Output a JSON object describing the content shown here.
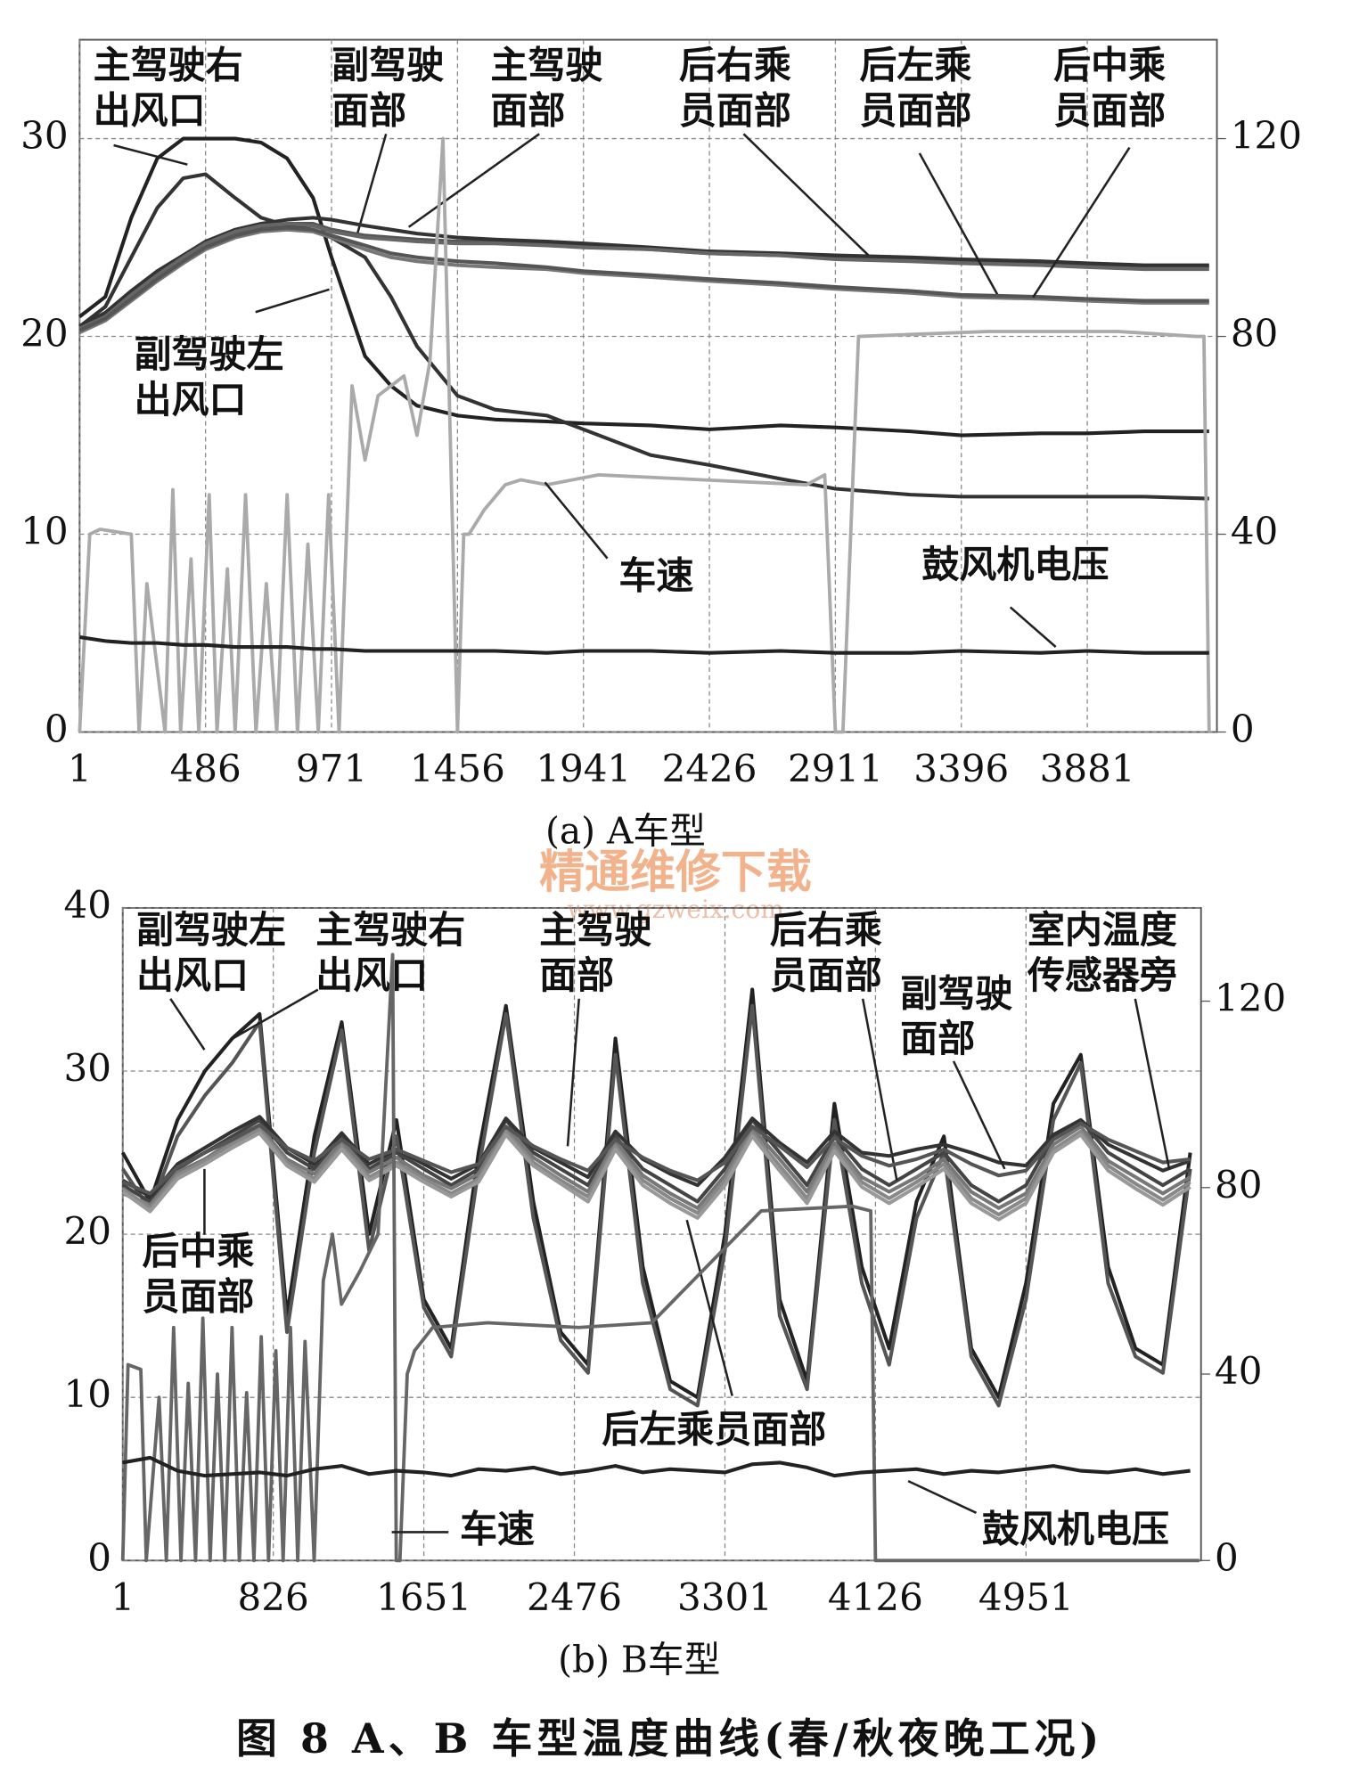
{
  "chart_data": [
    {
      "type": "line",
      "title": "(a) A车型",
      "x": [
        1,
        100,
        200,
        300,
        400,
        486,
        600,
        700,
        800,
        900,
        971,
        1100,
        1200,
        1300,
        1456,
        1600,
        1800,
        1941,
        2200,
        2426,
        2700,
        2911,
        3200,
        3396,
        3700,
        3881,
        4100,
        4350
      ],
      "xlim": [
        1,
        4380
      ],
      "xticks": [
        1,
        486,
        971,
        1456,
        1941,
        2426,
        2911,
        3396,
        3881
      ],
      "ylim": [
        0,
        35
      ],
      "yticks": [
        0,
        10,
        20,
        30
      ],
      "y2lim": [
        0,
        140
      ],
      "y2ticks": [
        0,
        40,
        80,
        120
      ],
      "grid": true,
      "series": [
        {
          "name": "主驾驶右出风口",
          "color": "#222",
          "values": [
            21,
            22,
            26,
            29,
            30,
            30,
            30,
            29.8,
            29,
            27,
            24,
            19,
            17.5,
            16.5,
            16,
            15.8,
            15.7,
            15.6,
            15.5,
            15.3,
            15.5,
            15.4,
            15.2,
            15.0,
            15.1,
            15.1,
            15.2,
            15.2
          ]
        },
        {
          "name": "副驾驶左出风口",
          "color": "#333",
          "values": [
            20.5,
            21.5,
            24,
            26.5,
            28,
            28.2,
            27,
            26,
            25.6,
            25.4,
            25,
            24,
            22,
            19.5,
            17,
            16.3,
            16,
            15.3,
            14,
            13.5,
            12.8,
            12.3,
            12.0,
            11.9,
            11.9,
            11.9,
            11.9,
            11.8
          ]
        },
        {
          "name": "副驾驶面部",
          "color": "#555",
          "values": [
            20.3,
            21,
            22,
            23,
            23.9,
            24.6,
            25.2,
            25.5,
            25.7,
            25.7,
            25.4,
            25.1,
            25,
            24.9,
            24.8,
            24.8,
            24.7,
            24.6,
            24.4,
            24.2,
            24.1,
            24,
            23.9,
            23.8,
            23.7,
            23.6,
            23.5,
            23.5
          ]
        },
        {
          "name": "主驾驶面部",
          "color": "#333",
          "values": [
            20.5,
            21.2,
            22.3,
            23.3,
            24.1,
            24.8,
            25.4,
            25.7,
            25.9,
            26,
            25.9,
            25.6,
            25.4,
            25.2,
            25,
            24.9,
            24.8,
            24.7,
            24.5,
            24.3,
            24.2,
            24.1,
            24,
            23.9,
            23.8,
            23.7,
            23.6,
            23.6
          ]
        },
        {
          "name": "后右乘员面部",
          "color": "#666",
          "values": [
            20.4,
            21,
            22.1,
            23.1,
            24,
            24.7,
            25.3,
            25.6,
            25.7,
            25.6,
            25.3,
            25,
            24.9,
            24.8,
            24.7,
            24.7,
            24.6,
            24.5,
            24.4,
            24.2,
            24.1,
            23.9,
            23.8,
            23.7,
            23.6,
            23.5,
            23.4,
            23.4
          ]
        },
        {
          "name": "后左乘员面部",
          "color": "#777",
          "values": [
            20.2,
            20.8,
            21.8,
            22.8,
            23.7,
            24.4,
            25,
            25.3,
            25.4,
            25.3,
            25,
            24.4,
            24,
            23.8,
            23.6,
            23.5,
            23.4,
            23.2,
            23,
            22.8,
            22.6,
            22.4,
            22.2,
            22,
            21.9,
            21.8,
            21.7,
            21.7
          ]
        },
        {
          "name": "后中乘员面部",
          "color": "#555",
          "values": [
            20.3,
            20.9,
            21.9,
            22.9,
            23.8,
            24.5,
            25.1,
            25.4,
            25.5,
            25.4,
            25.1,
            24.6,
            24.2,
            24,
            23.8,
            23.7,
            23.5,
            23.3,
            23.1,
            22.9,
            22.7,
            22.5,
            22.3,
            22.1,
            22,
            21.9,
            21.8,
            21.8
          ]
        },
        {
          "name": "车速",
          "color": "#aaa",
          "axis": "y2",
          "x": [
            1,
            40,
            80,
            200,
            230,
            260,
            330,
            360,
            390,
            430,
            460,
            500,
            530,
            570,
            600,
            640,
            680,
            720,
            760,
            800,
            840,
            880,
            920,
            960,
            1000,
            1050,
            1100,
            1150,
            1200,
            1250,
            1300,
            1350,
            1400,
            1456,
            1480,
            1500,
            1560,
            1640,
            1700,
            1800,
            2000,
            2400,
            2800,
            2870,
            2911,
            2940,
            3000,
            3500,
            4000,
            4300,
            4330,
            4350
          ],
          "values": [
            0,
            40,
            41,
            40,
            0,
            30,
            0,
            49,
            0,
            35,
            0,
            48,
            0,
            33,
            0,
            48,
            0,
            30,
            0,
            48,
            0,
            38,
            0,
            48,
            0,
            70,
            55,
            68,
            70,
            72,
            60,
            75,
            120,
            0,
            40,
            40,
            45,
            50,
            51,
            50,
            52,
            51,
            50,
            52,
            0,
            0,
            80,
            81,
            81,
            80,
            80,
            0
          ]
        },
        {
          "name": "鼓风机电压",
          "color": "#222",
          "values": [
            4.8,
            4.6,
            4.5,
            4.5,
            4.4,
            4.4,
            4.3,
            4.3,
            4.3,
            4.2,
            4.2,
            4.1,
            4.1,
            4.1,
            4.1,
            4.1,
            4.0,
            4.1,
            4.1,
            4.0,
            4.1,
            4.0,
            4.0,
            4.1,
            4.0,
            4.1,
            4.0,
            4.0
          ]
        }
      ]
    },
    {
      "type": "line",
      "title": "(b) B车型",
      "x": [
        1,
        151,
        301,
        451,
        601,
        751,
        901,
        1051,
        1201,
        1351,
        1501,
        1651,
        1801,
        1951,
        2101,
        2251,
        2401,
        2551,
        2701,
        2851,
        3001,
        3151,
        3301,
        3451,
        3601,
        3751,
        3901,
        4051,
        4201,
        4351,
        4501,
        4651,
        4801,
        4951,
        5101,
        5251,
        5401,
        5551,
        5701,
        5851
      ],
      "xlim": [
        1,
        5910
      ],
      "xticks": [
        1,
        826,
        1651,
        2476,
        3301,
        4126,
        4951
      ],
      "ylim": [
        0,
        40
      ],
      "yticks": [
        0,
        10,
        20,
        30,
        40
      ],
      "y2lim": [
        0,
        140
      ],
      "y2ticks": [
        0,
        40,
        80,
        120
      ],
      "grid": true,
      "series": [
        {
          "name": "副驾驶左出风口",
          "color": "#222",
          "values": [
            25,
            22,
            27,
            30,
            32,
            33.5,
            15,
            26,
            33,
            20,
            27,
            16,
            13,
            25,
            34,
            22,
            14,
            12,
            32,
            18,
            11,
            10,
            20,
            35,
            16,
            11,
            28,
            18,
            13,
            22,
            26,
            13,
            10,
            17,
            28,
            31,
            18,
            13,
            12,
            25
          ]
        },
        {
          "name": "主驾驶右出风口",
          "color": "#555",
          "values": [
            24,
            21.5,
            26,
            28.5,
            30.5,
            33,
            14,
            25,
            32.5,
            19,
            26,
            15.5,
            12.5,
            24,
            33.5,
            21,
            13.5,
            11.5,
            31,
            17,
            10.5,
            9.5,
            19,
            34,
            15,
            10.5,
            27,
            17,
            12,
            21,
            25,
            12.5,
            9.5,
            16,
            27,
            30.5,
            17,
            12.5,
            11.5,
            24
          ]
        },
        {
          "name": "主驾驶面部",
          "color": "#444",
          "values": [
            23,
            22,
            24,
            25,
            26,
            27,
            25,
            24,
            26,
            24,
            25,
            24,
            23,
            24,
            27,
            25,
            24,
            23,
            26,
            24,
            23,
            22,
            24,
            27,
            25,
            23,
            26,
            24,
            23,
            24,
            25,
            23,
            22,
            23,
            26,
            27,
            25,
            24,
            23,
            24
          ]
        },
        {
          "name": "后右乘员面部",
          "color": "#777",
          "values": [
            22.5,
            21.8,
            23.8,
            24.6,
            25.7,
            26.6,
            24.6,
            23.7,
            25.7,
            23.8,
            24.7,
            23.6,
            22.8,
            23.7,
            26.6,
            24.7,
            23.6,
            22.6,
            25.7,
            23.6,
            22.5,
            21.6,
            23.6,
            26.5,
            24.6,
            22.6,
            25.6,
            23.5,
            22.6,
            23.5,
            24.6,
            22.6,
            21.6,
            22.5,
            25.5,
            26.6,
            24.5,
            23.5,
            22.5,
            23.5
          ]
        },
        {
          "name": "副驾驶面部",
          "color": "#333",
          "values": [
            23.3,
            22.3,
            24.3,
            25.3,
            26.3,
            27.2,
            25.3,
            24.3,
            26.2,
            24.3,
            25.2,
            24.3,
            23.4,
            24.3,
            27.1,
            25.3,
            24.4,
            23.5,
            26.3,
            24.6,
            23.7,
            23.0,
            24.7,
            27.1,
            25.6,
            24.4,
            26.3,
            25,
            24.8,
            25.2,
            25.5,
            25,
            24.4,
            24.2,
            26.1,
            27,
            25.5,
            24.7,
            23.9,
            24.5
          ]
        },
        {
          "name": "室内温度传感器旁",
          "color": "#555",
          "values": [
            23.2,
            22.5,
            24.1,
            25,
            25.8,
            26.7,
            25.3,
            24.5,
            25.8,
            24.6,
            25.2,
            24.5,
            23.8,
            24.3,
            26.6,
            25.4,
            24.6,
            23.9,
            25.8,
            24.7,
            23.9,
            23.3,
            24.4,
            26.6,
            25.4,
            24.1,
            25.9,
            24.8,
            24.2,
            24.6,
            25.2,
            24.3,
            23.6,
            23.9,
            25.8,
            26.8,
            25.8,
            25.1,
            24.4,
            24.6
          ]
        },
        {
          "name": "后中乘员面部",
          "color": "#888",
          "values": [
            22.8,
            21.6,
            23.6,
            24.5,
            25.5,
            26.4,
            24.4,
            23.4,
            25.4,
            23.5,
            24.4,
            23.4,
            22.5,
            23.4,
            26.3,
            24.4,
            23.3,
            22.3,
            25.4,
            23.3,
            22.2,
            21.3,
            23.3,
            26.2,
            24.2,
            22.2,
            25.3,
            23.2,
            22.2,
            23.2,
            24.3,
            22.2,
            21.2,
            22.2,
            25.2,
            26.3,
            24.2,
            23.1,
            22.1,
            23.2
          ]
        },
        {
          "name": "后左乘员面部",
          "color": "#999",
          "values": [
            22.6,
            21.4,
            23.4,
            24.3,
            25.3,
            26.2,
            24.2,
            23.2,
            25.2,
            23.3,
            24.2,
            23.2,
            22.3,
            23.2,
            26.1,
            24.2,
            23.1,
            22.0,
            25.2,
            23.0,
            21.9,
            21.0,
            23.0,
            26.0,
            23.9,
            21.9,
            25.1,
            22.9,
            21.9,
            22.9,
            24.0,
            21.9,
            20.9,
            21.9,
            25.0,
            26.1,
            23.9,
            22.8,
            21.8,
            22.9
          ]
        },
        {
          "name": "车速",
          "color": "#666",
          "axis": "y2",
          "x": [
            1,
            30,
            100,
            130,
            200,
            240,
            280,
            320,
            360,
            400,
            440,
            480,
            520,
            560,
            600,
            640,
            680,
            720,
            760,
            800,
            840,
            880,
            920,
            960,
            1000,
            1050,
            1100,
            1150,
            1200,
            1300,
            1400,
            1480,
            1500,
            1520,
            1560,
            1600,
            1700,
            2000,
            2500,
            2900,
            3500,
            4000,
            4100,
            4126,
            4200,
            5000,
            5900
          ],
          "values": [
            0,
            42,
            41,
            0,
            35,
            0,
            50,
            0,
            38,
            0,
            52,
            0,
            40,
            0,
            50,
            0,
            36,
            0,
            48,
            0,
            45,
            0,
            50,
            0,
            47,
            0,
            60,
            70,
            55,
            62,
            70,
            130,
            0,
            0,
            40,
            45,
            50,
            51,
            50,
            51,
            75,
            76,
            75,
            0,
            0,
            0,
            0
          ]
        },
        {
          "name": "鼓风机电压",
          "color": "#222",
          "values": [
            6,
            6.3,
            5.5,
            5.2,
            5.3,
            5.4,
            5.2,
            5.6,
            5.8,
            5.3,
            5.5,
            5.4,
            5.2,
            5.6,
            5.5,
            5.7,
            5.3,
            5.5,
            5.8,
            5.4,
            5.6,
            5.5,
            5.4,
            5.9,
            6,
            5.7,
            5.2,
            5.4,
            5.5,
            5.6,
            5.3,
            5.5,
            5.4,
            5.6,
            5.8,
            5.5,
            5.4,
            5.6,
            5.3,
            5.5
          ]
        }
      ]
    }
  ],
  "watermark": [
    "精通维修下载",
    "www.gzweix.com"
  ],
  "figure_caption": "图 8  A、B 车型温度曲线(春/秋夜晚工况)"
}
